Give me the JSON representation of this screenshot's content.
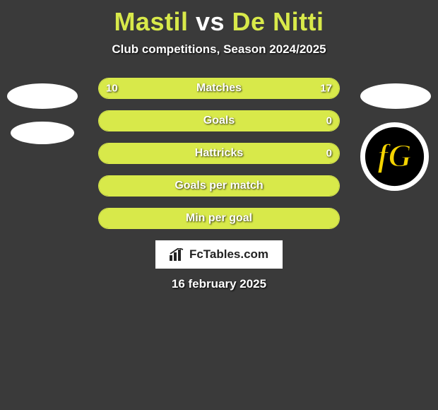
{
  "title": {
    "player1": "Mastil",
    "vs": "vs",
    "player2": "De Nitti"
  },
  "subtitle": "Club competitions, Season 2024/2025",
  "club_logo": {
    "outer_ring": "#ffffff",
    "inner_bg": "#000000",
    "letters_fill": "#f5d400",
    "letters_stroke": "#000000"
  },
  "bars": {
    "accent_color": "#d8e94a",
    "bg_color": "#3a3a3a",
    "rows": [
      {
        "label": "Matches",
        "left_val": "10",
        "right_val": "17",
        "left_pct": 37,
        "right_pct": 63
      },
      {
        "label": "Goals",
        "left_val": "",
        "right_val": "0",
        "left_pct": 100,
        "right_pct": 0
      },
      {
        "label": "Hattricks",
        "left_val": "",
        "right_val": "0",
        "left_pct": 100,
        "right_pct": 0
      },
      {
        "label": "Goals per match",
        "left_val": "",
        "right_val": "",
        "left_pct": 100,
        "right_pct": 0
      },
      {
        "label": "Min per goal",
        "left_val": "",
        "right_val": "",
        "left_pct": 100,
        "right_pct": 0
      }
    ]
  },
  "watermark": "FcTables.com",
  "date": "16 february 2025"
}
